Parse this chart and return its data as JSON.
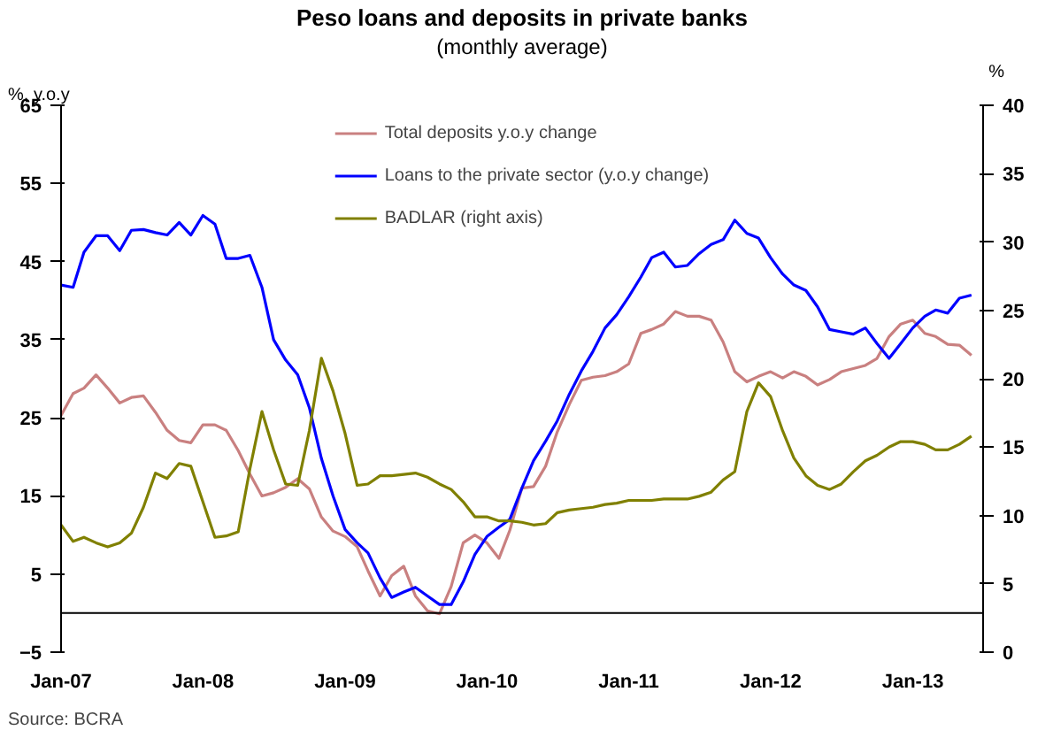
{
  "chart_data": {
    "type": "line",
    "title": "Peso loans and deposits in private banks",
    "subtitle": "(monthly average)",
    "ylabel": "%, y.o.y",
    "y2label": "%",
    "x": [
      "2007-01",
      "2007-02",
      "2007-03",
      "2007-04",
      "2007-05",
      "2007-06",
      "2007-07",
      "2007-08",
      "2007-09",
      "2007-10",
      "2007-11",
      "2007-12",
      "2008-01",
      "2008-02",
      "2008-03",
      "2008-04",
      "2008-05",
      "2008-06",
      "2008-07",
      "2008-08",
      "2008-09",
      "2008-10",
      "2008-11",
      "2008-12",
      "2009-01",
      "2009-02",
      "2009-03",
      "2009-04",
      "2009-05",
      "2009-06",
      "2009-07",
      "2009-08",
      "2009-09",
      "2009-10",
      "2009-11",
      "2009-12",
      "2010-01",
      "2010-02",
      "2010-03",
      "2010-04",
      "2010-05",
      "2010-06",
      "2010-07",
      "2010-08",
      "2010-09",
      "2010-10",
      "2010-11",
      "2010-12",
      "2011-01",
      "2011-02",
      "2011-03",
      "2011-04",
      "2011-05",
      "2011-06",
      "2011-07",
      "2011-08",
      "2011-09",
      "2011-10",
      "2011-11",
      "2011-12",
      "2012-01",
      "2012-02",
      "2012-03",
      "2012-04",
      "2012-05",
      "2012-06",
      "2012-07",
      "2012-08",
      "2012-09",
      "2012-10",
      "2012-11",
      "2012-12",
      "2013-01",
      "2013-02",
      "2013-03",
      "2013-04",
      "2013-05",
      "2013-06"
    ],
    "series": [
      {
        "name": "Total deposits y.o.y change",
        "color": "#c98080",
        "values": [
          25.3,
          28.1,
          28.8,
          30.5,
          28.8,
          26.9,
          27.6,
          27.8,
          25.7,
          23.4,
          22.1,
          21.8,
          24.1,
          24.1,
          23.4,
          20.8,
          17.8,
          15.0,
          15.4,
          16.1,
          17.2,
          15.9,
          12.3,
          10.5,
          9.8,
          8.5,
          5.4,
          2.2,
          4.8,
          6.0,
          2.2,
          0.3,
          -0.1,
          3.4,
          9.0,
          10.0,
          9.0,
          7.0,
          10.6,
          16.0,
          16.2,
          18.8,
          23.2,
          26.7,
          29.8,
          30.2,
          30.4,
          30.9,
          31.9,
          35.8,
          36.3,
          37.0,
          38.6,
          38.0,
          38.0,
          37.5,
          34.7,
          30.9,
          29.6,
          30.3,
          30.9,
          30.1,
          30.9,
          30.3,
          29.2,
          29.9,
          30.9,
          31.3,
          31.7,
          32.6,
          35.4,
          37.0,
          37.5,
          35.8,
          35.4,
          34.4,
          34.3,
          33.0
        ]
      },
      {
        "name": "Loans to the private sector (y.o.y change)",
        "color": "#0000ff",
        "values": [
          42.0,
          41.7,
          46.2,
          48.3,
          48.3,
          46.4,
          49.0,
          49.1,
          48.7,
          48.4,
          50.0,
          48.4,
          50.9,
          49.8,
          45.4,
          45.4,
          45.8,
          41.7,
          35.0,
          32.4,
          30.5,
          26.3,
          19.8,
          15.0,
          10.7,
          9.0,
          7.7,
          4.5,
          2.0,
          2.7,
          3.3,
          2.2,
          1.1,
          1.1,
          4.0,
          7.5,
          9.8,
          11.0,
          12.0,
          16.0,
          19.5,
          22.0,
          24.6,
          28.0,
          31.0,
          33.5,
          36.5,
          38.2,
          40.5,
          43.0,
          45.5,
          46.2,
          44.3,
          44.5,
          46.0,
          47.2,
          47.8,
          50.3,
          48.6,
          48.0,
          45.5,
          43.4,
          42.0,
          41.3,
          39.2,
          36.3,
          36.0,
          35.7,
          36.5,
          34.5,
          32.6,
          34.5,
          36.5,
          38.0,
          38.8,
          38.4,
          40.3,
          40.7
        ]
      },
      {
        "name": "BADLAR (right axis)",
        "color": "#808000",
        "axis": "y2",
        "values": [
          9.3,
          8.1,
          8.4,
          8.0,
          7.7,
          8.0,
          8.7,
          10.6,
          13.1,
          12.7,
          13.8,
          13.6,
          11.0,
          8.4,
          8.5,
          8.8,
          13.4,
          17.6,
          14.8,
          12.3,
          12.2,
          16.2,
          21.5,
          19.1,
          16.0,
          12.2,
          12.3,
          12.9,
          12.9,
          13.0,
          13.1,
          12.8,
          12.3,
          11.9,
          11.0,
          9.9,
          9.9,
          9.6,
          9.6,
          9.5,
          9.3,
          9.4,
          10.2,
          10.4,
          10.5,
          10.6,
          10.8,
          10.9,
          11.1,
          11.1,
          11.1,
          11.2,
          11.2,
          11.2,
          11.4,
          11.7,
          12.6,
          13.2,
          17.6,
          19.7,
          18.7,
          16.2,
          14.2,
          12.9,
          12.2,
          11.9,
          12.3,
          13.2,
          14.0,
          14.4,
          15.0,
          15.4,
          15.4,
          15.2,
          14.8,
          14.8,
          15.2,
          15.8
        ]
      }
    ],
    "xlim": [
      "2007-01",
      "2013-07"
    ],
    "xticks": [
      {
        "value": "2007-01",
        "label": "Jan-07"
      },
      {
        "value": "2008-01",
        "label": "Jan-08"
      },
      {
        "value": "2009-01",
        "label": "Jan-09"
      },
      {
        "value": "2010-01",
        "label": "Jan-10"
      },
      {
        "value": "2011-01",
        "label": "Jan-11"
      },
      {
        "value": "2012-01",
        "label": "Jan-12"
      },
      {
        "value": "2013-01",
        "label": "Jan-13"
      }
    ],
    "ylim": [
      -5,
      65
    ],
    "yticks": [
      -5,
      5,
      15,
      25,
      35,
      45,
      55,
      65
    ],
    "y2lim": [
      0,
      40
    ],
    "y2ticks": [
      0,
      5,
      10,
      15,
      20,
      25,
      30,
      35,
      40
    ],
    "ref_lines": [
      {
        "axis": "y",
        "value": 0,
        "color": "#000000"
      }
    ],
    "annotations": [
      "Source: BCRA"
    ],
    "grid": false,
    "legend": "top",
    "marker": "none",
    "line_style": "solid"
  }
}
